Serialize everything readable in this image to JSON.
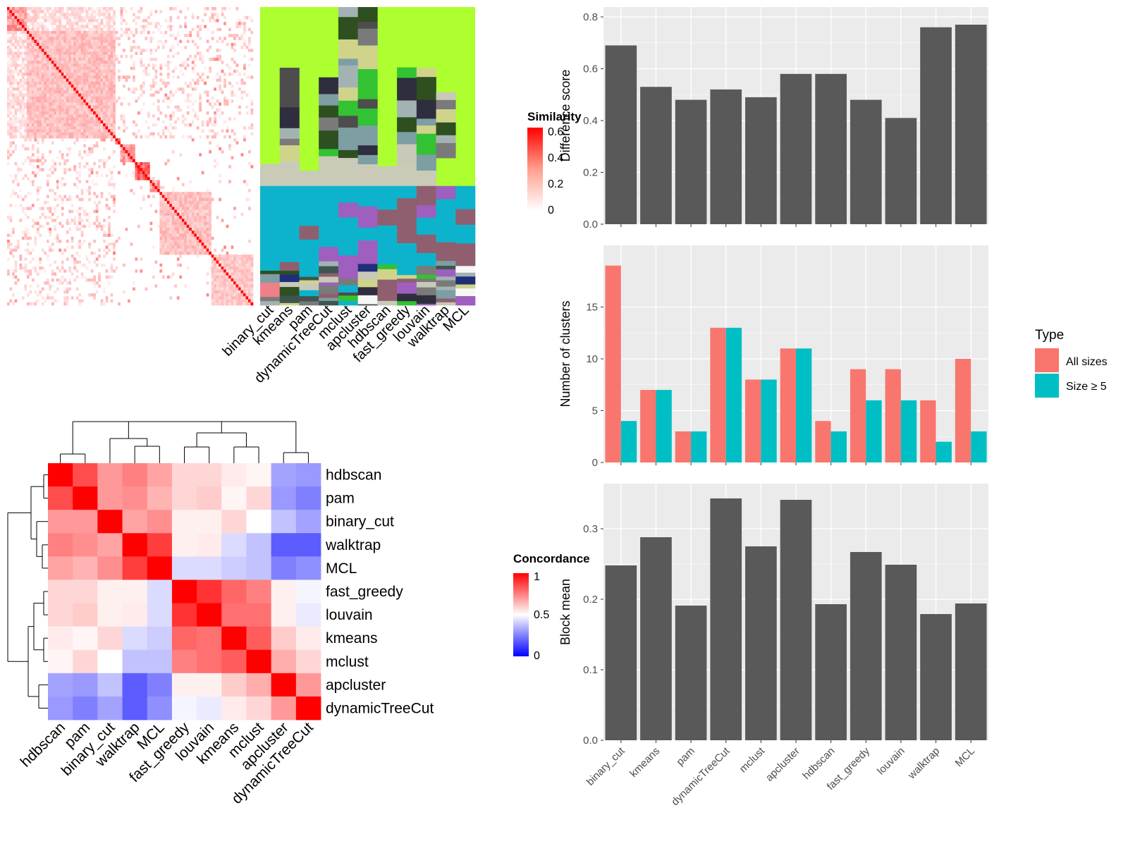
{
  "colors": {
    "bar_dark": "#595959",
    "all_sizes": "#F8766D",
    "size5": "#00BFC4",
    "panel_bg": "#EBEBEB",
    "grid": "#FFFFFF",
    "heat_high": "#FF0000",
    "heat_mid": "#FFFFFF",
    "heat_low": "#0000FF"
  },
  "legends": {
    "similarity": {
      "title": "Similarity",
      "ticks": [
        "0.6",
        "0.4",
        "0.2",
        "0"
      ]
    },
    "concordance": {
      "title": "Concordance",
      "ticks": [
        "1",
        "0.5",
        "0"
      ]
    },
    "type": {
      "title": "Type",
      "items": [
        "All sizes",
        "Size ≥ 5"
      ]
    }
  },
  "chart_data": [
    {
      "type": "heatmap",
      "name": "cell similarity heatmap with cluster annotation columns",
      "similarity_range": [
        0,
        0.6
      ],
      "annotation_columns": [
        "binary_cut",
        "kmeans",
        "pam",
        "dynamicTreeCut",
        "mclust",
        "apcluster",
        "hdbscan",
        "fast_greedy",
        "louvain",
        "walktrap",
        "MCL"
      ]
    },
    {
      "type": "heatmap",
      "name": "concordance heatmap",
      "rows": [
        "hdbscan",
        "pam",
        "binary_cut",
        "walktrap",
        "MCL",
        "fast_greedy",
        "louvain",
        "kmeans",
        "mclust",
        "apcluster",
        "dynamicTreeCut"
      ],
      "columns": [
        "hdbscan",
        "pam",
        "binary_cut",
        "walktrap",
        "MCL",
        "fast_greedy",
        "louvain",
        "kmeans",
        "mclust",
        "apcluster",
        "dynamicTreeCut"
      ],
      "values": [
        [
          1.0,
          0.85,
          0.7,
          0.75,
          0.68,
          0.58,
          0.58,
          0.54,
          0.52,
          0.32,
          0.3
        ],
        [
          0.85,
          1.0,
          0.7,
          0.72,
          0.65,
          0.58,
          0.6,
          0.52,
          0.58,
          0.3,
          0.25
        ],
        [
          0.7,
          0.7,
          1.0,
          0.68,
          0.72,
          0.53,
          0.53,
          0.58,
          0.5,
          0.38,
          0.32
        ],
        [
          0.75,
          0.72,
          0.68,
          1.0,
          0.88,
          0.53,
          0.54,
          0.43,
          0.38,
          0.18,
          0.18
        ],
        [
          0.68,
          0.65,
          0.72,
          0.88,
          1.0,
          0.43,
          0.43,
          0.4,
          0.38,
          0.25,
          0.28
        ],
        [
          0.58,
          0.58,
          0.53,
          0.53,
          0.43,
          1.0,
          0.9,
          0.8,
          0.75,
          0.53,
          0.48
        ],
        [
          0.58,
          0.6,
          0.53,
          0.54,
          0.43,
          0.9,
          1.0,
          0.78,
          0.78,
          0.53,
          0.46
        ],
        [
          0.54,
          0.52,
          0.58,
          0.43,
          0.4,
          0.8,
          0.78,
          1.0,
          0.82,
          0.6,
          0.54
        ],
        [
          0.52,
          0.58,
          0.5,
          0.38,
          0.38,
          0.75,
          0.78,
          0.82,
          1.0,
          0.66,
          0.58
        ],
        [
          0.32,
          0.3,
          0.38,
          0.18,
          0.25,
          0.53,
          0.53,
          0.6,
          0.66,
          1.0,
          0.7
        ],
        [
          0.3,
          0.25,
          0.32,
          0.18,
          0.28,
          0.48,
          0.46,
          0.54,
          0.58,
          0.7,
          1.0
        ]
      ]
    },
    {
      "type": "bar",
      "categories": [
        "binary_cut",
        "kmeans",
        "pam",
        "dynamicTreeCut",
        "mclust",
        "apcluster",
        "hdbscan",
        "fast_greedy",
        "louvain",
        "walktrap",
        "MCL"
      ],
      "values": [
        0.69,
        0.53,
        0.48,
        0.52,
        0.49,
        0.58,
        0.58,
        0.48,
        0.41,
        0.76,
        0.77
      ],
      "ylabel": "Difference score",
      "ylim": [
        0,
        0.8
      ],
      "yticks": [
        "0.0",
        "0.2",
        "0.4",
        "0.6",
        "0.8"
      ]
    },
    {
      "type": "bar",
      "categories": [
        "binary_cut",
        "kmeans",
        "pam",
        "dynamicTreeCut",
        "mclust",
        "apcluster",
        "hdbscan",
        "fast_greedy",
        "louvain",
        "walktrap",
        "MCL"
      ],
      "series": [
        {
          "name": "All sizes",
          "values": [
            19,
            7,
            3,
            13,
            8,
            11,
            4,
            9,
            9,
            6,
            10
          ]
        },
        {
          "name": "Size ≥ 5",
          "values": [
            4,
            7,
            3,
            13,
            8,
            11,
            3,
            6,
            6,
            2,
            3
          ]
        }
      ],
      "ylabel": "Number of clusters",
      "ylim": [
        0,
        20
      ],
      "yticks": [
        "0",
        "5",
        "10",
        "15"
      ]
    },
    {
      "type": "bar",
      "categories": [
        "binary_cut",
        "kmeans",
        "pam",
        "dynamicTreeCut",
        "mclust",
        "apcluster",
        "hdbscan",
        "fast_greedy",
        "louvain",
        "walktrap",
        "MCL"
      ],
      "values": [
        0.248,
        0.288,
        0.191,
        0.343,
        0.275,
        0.341,
        0.193,
        0.267,
        0.249,
        0.179,
        0.194
      ],
      "ylabel": "Block mean",
      "ylim": [
        0,
        0.35
      ],
      "yticks": [
        "0.0",
        "0.1",
        "0.2",
        "0.3"
      ]
    }
  ]
}
